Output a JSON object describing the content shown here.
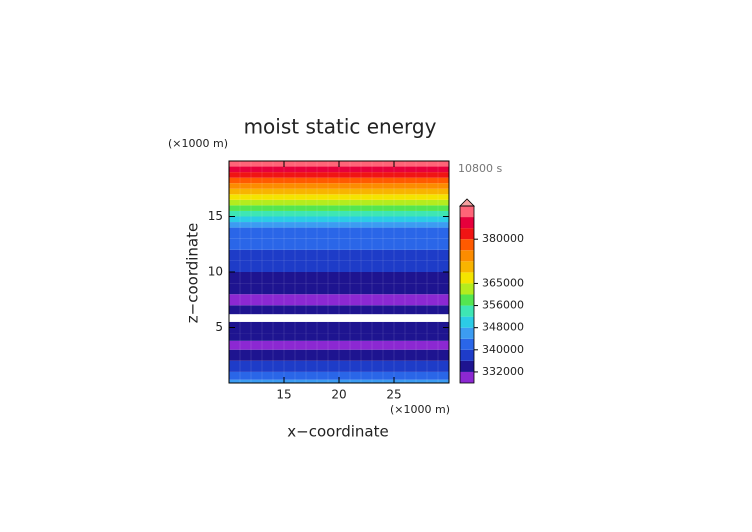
{
  "chart_data": {
    "type": "contour-profile",
    "title": "moist static energy",
    "x_label": "x−coordinate",
    "y_label": "z−coordinate",
    "x_unit": "(×1000 m)",
    "y_unit": "(×1000 m)",
    "time_label": "10800 s",
    "xlim": [
      10,
      30
    ],
    "ylim": [
      0,
      20
    ],
    "xticks": [
      15,
      20,
      25
    ],
    "yticks": [
      5,
      10,
      15
    ],
    "y_bins": [
      0,
      0.3,
      1,
      2,
      3,
      3.8,
      4.5,
      5.5,
      6.2,
      7,
      8,
      9,
      10,
      11,
      12,
      13,
      14,
      14.5,
      15,
      15.5,
      16,
      16.5,
      17,
      17.5,
      18,
      18.5,
      19,
      19.5,
      20
    ],
    "values": [
      346000,
      342000,
      338000,
      334000,
      330000,
      334000,
      333000,
      null,
      334000,
      330000,
      333000,
      335000,
      337000,
      339000,
      341000,
      343000,
      346000,
      350000,
      354000,
      358000,
      362000,
      366000,
      370000,
      374000,
      378000,
      382000,
      386000,
      390000
    ],
    "levels": [
      328000,
      332000,
      336000,
      340000,
      344000,
      348000,
      352000,
      356000,
      360000,
      365000,
      368000,
      372000,
      376000,
      380000,
      384000,
      388000,
      392000
    ],
    "colors": [
      "#8c28d2",
      "#1e1490",
      "#1e3cc8",
      "#2a66e8",
      "#3c9cf2",
      "#2ccce6",
      "#3ee6b4",
      "#54e650",
      "#b4ec1e",
      "#f4e400",
      "#f8b400",
      "#fc8c00",
      "#ff5a00",
      "#f01414",
      "#e6003c",
      "#ff6478"
    ],
    "over_color": "#f5a0a0",
    "cticks": [
      332000,
      340000,
      348000,
      356000,
      365000,
      380000
    ]
  }
}
